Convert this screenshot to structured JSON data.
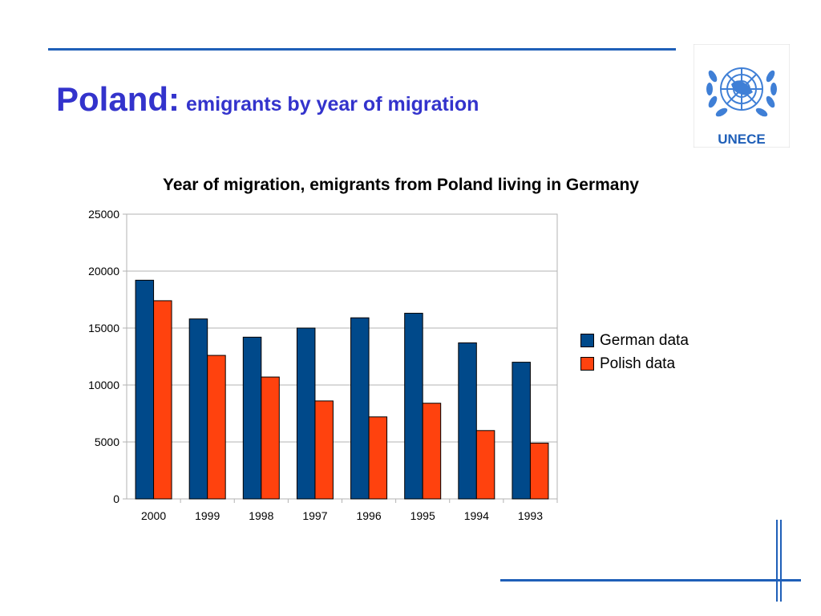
{
  "slide": {
    "title": "Poland:",
    "subtitle": "emigrants by year of migration",
    "logo_text": "UNECE",
    "accent_color": "#1f5fb8",
    "title_color": "#3333cc"
  },
  "chart_data": {
    "type": "bar",
    "title": "Year of migration, emigrants from Poland living in Germany",
    "xlabel": "",
    "ylabel": "",
    "categories": [
      "2000",
      "1999",
      "1998",
      "1997",
      "1996",
      "1995",
      "1994",
      "1993"
    ],
    "series": [
      {
        "name": "German data",
        "color": "#00498a",
        "values": [
          19200,
          15800,
          14200,
          15000,
          15900,
          16300,
          13700,
          12000
        ]
      },
      {
        "name": "Polish data",
        "color": "#ff420e",
        "values": [
          17400,
          12600,
          10700,
          8600,
          7200,
          8400,
          6000,
          4900
        ]
      }
    ],
    "ylim": [
      0,
      25000
    ],
    "yticks": [
      0,
      5000,
      10000,
      15000,
      20000,
      25000
    ],
    "grid": true,
    "legend_position": "right"
  }
}
